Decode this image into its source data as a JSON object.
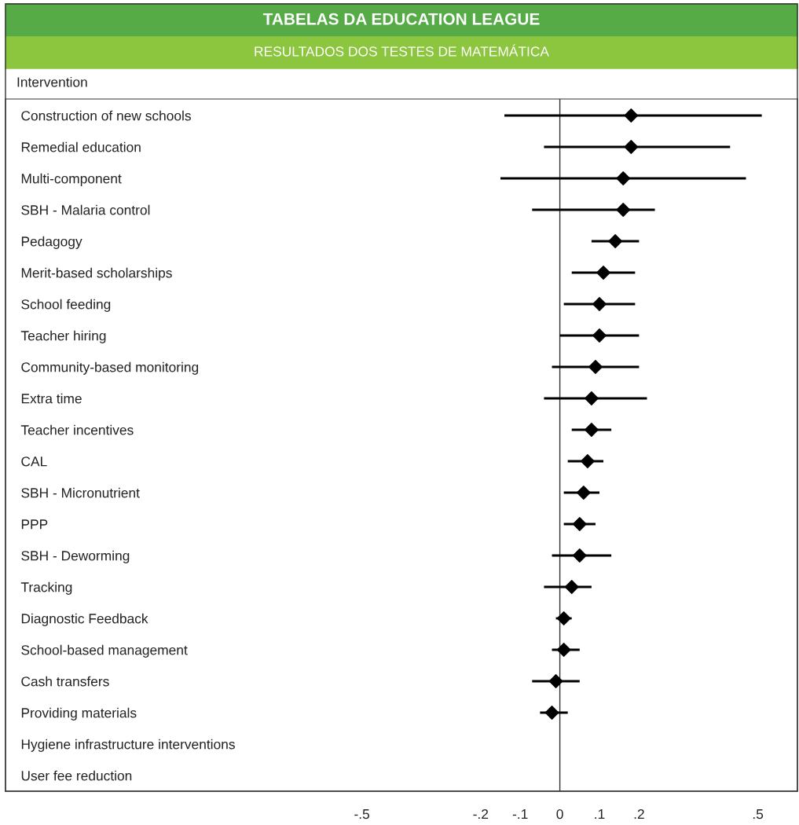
{
  "chart_data": {
    "type": "scatter",
    "title": "TABELAS DA EDUCATION LEAGUE",
    "subtitle": "RESULTADOS DOS TESTES DE MATEMÁTICA",
    "ylabel": "Intervention",
    "orientation": "horizontal",
    "categories": [
      "Construction of new schools",
      "Remedial education",
      "Multi-component",
      "SBH - Malaria control",
      "Pedagogy",
      "Merit-based scholarships",
      "School feeding",
      "Teacher hiring",
      "Community-based monitoring",
      "Extra time",
      "Teacher incentives",
      "CAL",
      "SBH - Micronutrient",
      "PPP",
      "SBH - Deworming",
      "Tracking",
      "Diagnostic Feedback",
      "School-based management",
      "Cash transfers",
      "Providing materials",
      "Hygiene infrastructure interventions",
      "User fee reduction"
    ],
    "values": [
      0.18,
      0.18,
      0.16,
      0.16,
      0.14,
      0.11,
      0.1,
      0.1,
      0.09,
      0.08,
      0.08,
      0.07,
      0.06,
      0.05,
      0.05,
      0.03,
      0.01,
      0.01,
      -0.01,
      -0.02,
      null,
      null
    ],
    "errors": [
      [
        -0.14,
        0.51
      ],
      [
        -0.04,
        0.43
      ],
      [
        -0.15,
        0.47
      ],
      [
        -0.07,
        0.24
      ],
      [
        0.08,
        0.2
      ],
      [
        0.03,
        0.19
      ],
      [
        0.01,
        0.19
      ],
      [
        0.0,
        0.2
      ],
      [
        -0.02,
        0.2
      ],
      [
        -0.04,
        0.22
      ],
      [
        0.03,
        0.13
      ],
      [
        0.02,
        0.11
      ],
      [
        0.01,
        0.1
      ],
      [
        0.01,
        0.09
      ],
      [
        -0.02,
        0.13
      ],
      [
        -0.04,
        0.08
      ],
      [
        -0.01,
        0.03
      ],
      [
        -0.02,
        0.05
      ],
      [
        -0.07,
        0.05
      ],
      [
        -0.05,
        0.02
      ],
      null,
      null
    ],
    "color": "#000000",
    "marker": "diamond",
    "xlim": [
      -1.4,
      0.6
    ],
    "xticks": [
      {
        "value": -0.5,
        "label": "-.5"
      },
      {
        "value": -0.2,
        "label": "-.2"
      },
      {
        "value": -0.1,
        "label": "-.1"
      },
      0,
      {
        "value": 0.1,
        "label": ".1"
      },
      {
        "value": 0.2,
        "label": ".2"
      },
      {
        "value": 0.5,
        "label": ".5"
      }
    ],
    "ref_lines": [
      {
        "axis": "x",
        "value": 0,
        "color": "#333333"
      }
    ],
    "grid": false,
    "legend": false
  }
}
